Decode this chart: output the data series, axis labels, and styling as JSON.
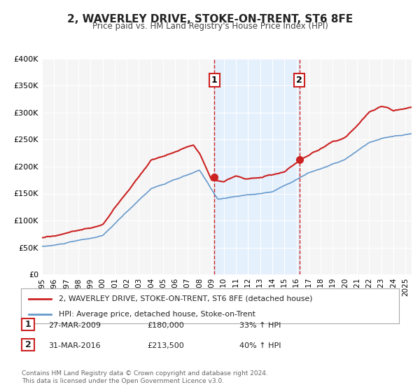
{
  "title": "2, WAVERLEY DRIVE, STOKE-ON-TRENT, ST6 8FE",
  "subtitle": "Price paid vs. HM Land Registry's House Price Index (HPI)",
  "xlabel": "",
  "ylabel": "",
  "ylim": [
    0,
    400000
  ],
  "yticks": [
    0,
    50000,
    100000,
    150000,
    200000,
    250000,
    300000,
    350000,
    400000
  ],
  "ytick_labels": [
    "£0",
    "£50K",
    "£100K",
    "£150K",
    "£200K",
    "£250K",
    "£300K",
    "£350K",
    "£400K"
  ],
  "xlim_start": 1995.0,
  "xlim_end": 2025.5,
  "xticks": [
    1995,
    1996,
    1997,
    1998,
    1999,
    2000,
    2001,
    2002,
    2003,
    2004,
    2005,
    2006,
    2007,
    2008,
    2009,
    2010,
    2011,
    2012,
    2013,
    2014,
    2015,
    2016,
    2017,
    2018,
    2019,
    2020,
    2021,
    2022,
    2023,
    2024,
    2025
  ],
  "hpi_color": "#6699cc",
  "price_color": "#cc2222",
  "sale1_x": 2009.23,
  "sale1_y": 180000,
  "sale2_x": 2016.25,
  "sale2_y": 213500,
  "shade_start": 2009.23,
  "shade_end": 2016.25,
  "legend_price_label": "2, WAVERLEY DRIVE, STOKE-ON-TRENT, ST6 8FE (detached house)",
  "legend_hpi_label": "HPI: Average price, detached house, Stoke-on-Trent",
  "annotation1_label": "1",
  "annotation2_label": "2",
  "table_row1": [
    "1",
    "27-MAR-2009",
    "£180,000",
    "33% ↑ HPI"
  ],
  "table_row2": [
    "2",
    "31-MAR-2016",
    "£213,500",
    "40% ↑ HPI"
  ],
  "footer": "Contains HM Land Registry data © Crown copyright and database right 2024.\nThis data is licensed under the Open Government Licence v3.0.",
  "background_color": "#ffffff",
  "plot_bg_color": "#f5f5f5",
  "grid_color": "#ffffff"
}
